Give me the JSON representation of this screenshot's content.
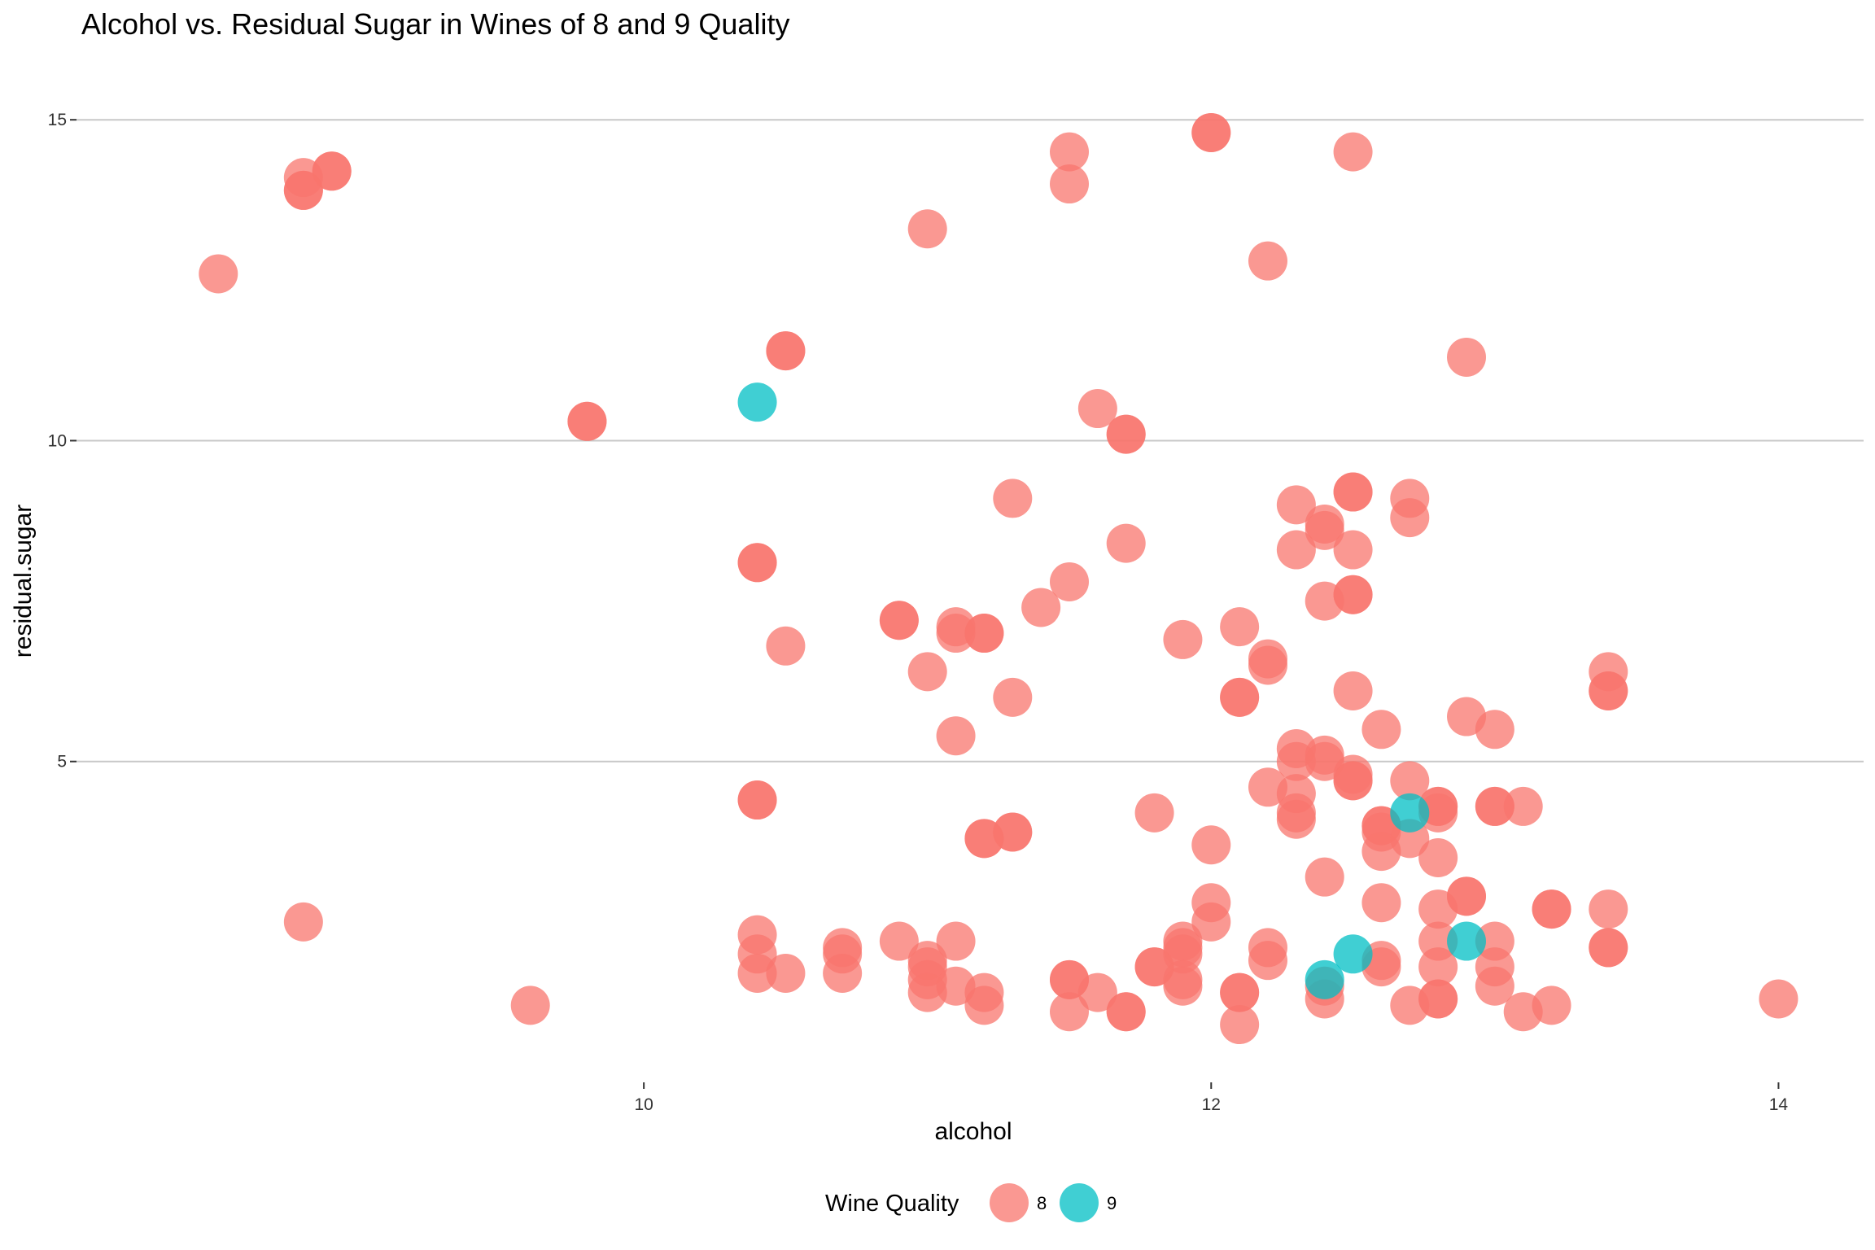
{
  "chart_data": {
    "type": "scatter",
    "title": "Alcohol vs. Residual Sugar in Wines of 8 and 9 Quality",
    "xlabel": "alcohol",
    "ylabel": "residual.sugar",
    "xlim": [
      8.0,
      14.3
    ],
    "ylim": [
      0.0,
      15.7
    ],
    "x_ticks": [
      10,
      12,
      14
    ],
    "y_ticks": [
      5,
      10,
      15
    ],
    "x_tick_labels": [
      "10",
      "12",
      "14"
    ],
    "y_tick_labels": [
      "5",
      "10",
      "15"
    ],
    "grid": "horizontal major",
    "legend": {
      "title": "Wine Quality",
      "position": "bottom",
      "entries": [
        {
          "label": "8",
          "color": "#F8766D"
        },
        {
          "label": "9",
          "color": "#00BFC4"
        }
      ]
    },
    "point_opacity": 0.75,
    "series": [
      {
        "name": "8",
        "color": "#F8766D",
        "points": [
          [
            8.5,
            12.6
          ],
          [
            8.8,
            14.1
          ],
          [
            8.8,
            13.9
          ],
          [
            8.8,
            13.9
          ],
          [
            8.9,
            14.2
          ],
          [
            8.9,
            14.2
          ],
          [
            8.8,
            2.5
          ],
          [
            9.6,
            1.2
          ],
          [
            9.8,
            10.3
          ],
          [
            9.8,
            10.3
          ],
          [
            10.4,
            8.1
          ],
          [
            10.4,
            8.1
          ],
          [
            10.4,
            4.4
          ],
          [
            10.4,
            4.4
          ],
          [
            10.4,
            2.3
          ],
          [
            10.4,
            2.0
          ],
          [
            10.4,
            1.7
          ],
          [
            10.5,
            11.4
          ],
          [
            10.5,
            11.4
          ],
          [
            10.5,
            6.8
          ],
          [
            10.5,
            1.7
          ],
          [
            10.7,
            2.1
          ],
          [
            10.7,
            2.0
          ],
          [
            10.7,
            1.7
          ],
          [
            10.9,
            7.2
          ],
          [
            10.9,
            7.2
          ],
          [
            10.9,
            2.2
          ],
          [
            11.0,
            6.4
          ],
          [
            11.0,
            1.9
          ],
          [
            11.0,
            1.8
          ],
          [
            11.0,
            1.6
          ],
          [
            11.0,
            1.4
          ],
          [
            11.0,
            13.3
          ],
          [
            11.1,
            7.0
          ],
          [
            11.1,
            7.1
          ],
          [
            11.1,
            5.4
          ],
          [
            11.1,
            2.2
          ],
          [
            11.1,
            1.5
          ],
          [
            11.2,
            7.0
          ],
          [
            11.2,
            7.0
          ],
          [
            11.2,
            3.8
          ],
          [
            11.2,
            3.8
          ],
          [
            11.2,
            1.4
          ],
          [
            11.2,
            1.2
          ],
          [
            11.3,
            9.1
          ],
          [
            11.3,
            6.0
          ],
          [
            11.3,
            3.9
          ],
          [
            11.3,
            3.9
          ],
          [
            11.4,
            7.4
          ],
          [
            11.5,
            7.8
          ],
          [
            11.5,
            14.5
          ],
          [
            11.5,
            14.0
          ],
          [
            11.5,
            1.6
          ],
          [
            11.5,
            1.6
          ],
          [
            11.5,
            1.1
          ],
          [
            11.6,
            10.5
          ],
          [
            11.6,
            1.4
          ],
          [
            11.7,
            10.1
          ],
          [
            11.7,
            10.1
          ],
          [
            11.7,
            8.4
          ],
          [
            11.7,
            1.1
          ],
          [
            11.7,
            1.1
          ],
          [
            11.8,
            4.2
          ],
          [
            11.8,
            1.8
          ],
          [
            11.8,
            1.8
          ],
          [
            11.9,
            6.9
          ],
          [
            11.9,
            2.2
          ],
          [
            11.9,
            2.1
          ],
          [
            11.9,
            2.0
          ],
          [
            11.9,
            1.6
          ],
          [
            11.9,
            1.5
          ],
          [
            12.0,
            14.8
          ],
          [
            12.0,
            14.8
          ],
          [
            12.0,
            3.7
          ],
          [
            12.0,
            2.8
          ],
          [
            12.0,
            2.5
          ],
          [
            12.1,
            7.1
          ],
          [
            12.1,
            6.0
          ],
          [
            12.1,
            6.0
          ],
          [
            12.1,
            1.4
          ],
          [
            12.1,
            1.4
          ],
          [
            12.1,
            0.9
          ],
          [
            12.2,
            12.8
          ],
          [
            12.2,
            6.6
          ],
          [
            12.2,
            6.5
          ],
          [
            12.2,
            4.6
          ],
          [
            12.2,
            2.1
          ],
          [
            12.2,
            1.9
          ],
          [
            12.3,
            9.0
          ],
          [
            12.3,
            8.3
          ],
          [
            12.3,
            5.2
          ],
          [
            12.3,
            5.0
          ],
          [
            12.3,
            4.5
          ],
          [
            12.3,
            4.2
          ],
          [
            12.3,
            4.1
          ],
          [
            12.4,
            8.6
          ],
          [
            12.4,
            8.7
          ],
          [
            12.4,
            7.5
          ],
          [
            12.4,
            5.1
          ],
          [
            12.4,
            5.0
          ],
          [
            12.4,
            3.2
          ],
          [
            12.4,
            1.5
          ],
          [
            12.4,
            1.3
          ],
          [
            12.5,
            14.5
          ],
          [
            12.5,
            9.2
          ],
          [
            12.5,
            9.2
          ],
          [
            12.5,
            8.3
          ],
          [
            12.5,
            7.6
          ],
          [
            12.5,
            7.6
          ],
          [
            12.5,
            6.1
          ],
          [
            12.5,
            4.8
          ],
          [
            12.5,
            4.7
          ],
          [
            12.5,
            4.7
          ],
          [
            12.6,
            5.5
          ],
          [
            12.6,
            4.0
          ],
          [
            12.6,
            4.0
          ],
          [
            12.6,
            3.9
          ],
          [
            12.6,
            3.6
          ],
          [
            12.6,
            2.8
          ],
          [
            12.6,
            1.9
          ],
          [
            12.6,
            1.8
          ],
          [
            12.7,
            9.1
          ],
          [
            12.7,
            8.8
          ],
          [
            12.7,
            4.7
          ],
          [
            12.7,
            3.8
          ],
          [
            12.7,
            1.2
          ],
          [
            12.8,
            4.3
          ],
          [
            12.8,
            4.3
          ],
          [
            12.8,
            4.2
          ],
          [
            12.8,
            3.5
          ],
          [
            12.8,
            2.7
          ],
          [
            12.8,
            2.2
          ],
          [
            12.8,
            1.8
          ],
          [
            12.8,
            1.3
          ],
          [
            12.8,
            1.3
          ],
          [
            12.9,
            11.3
          ],
          [
            12.9,
            5.7
          ],
          [
            12.9,
            2.9
          ],
          [
            12.9,
            2.9
          ],
          [
            13.0,
            5.5
          ],
          [
            13.0,
            4.3
          ],
          [
            13.0,
            4.3
          ],
          [
            13.0,
            2.2
          ],
          [
            13.0,
            1.8
          ],
          [
            13.0,
            1.5
          ],
          [
            13.1,
            4.3
          ],
          [
            13.1,
            1.1
          ],
          [
            13.2,
            2.7
          ],
          [
            13.2,
            2.7
          ],
          [
            13.2,
            1.2
          ],
          [
            13.4,
            6.4
          ],
          [
            13.4,
            6.1
          ],
          [
            13.4,
            6.1
          ],
          [
            13.4,
            2.7
          ],
          [
            13.4,
            2.1
          ],
          [
            13.4,
            2.1
          ],
          [
            14.0,
            1.3
          ]
        ]
      },
      {
        "name": "9",
        "color": "#00BFC4",
        "points": [
          [
            10.4,
            10.6
          ],
          [
            12.4,
            1.6
          ],
          [
            12.5,
            2.0
          ],
          [
            12.7,
            4.2
          ],
          [
            12.9,
            2.2
          ]
        ]
      }
    ]
  }
}
